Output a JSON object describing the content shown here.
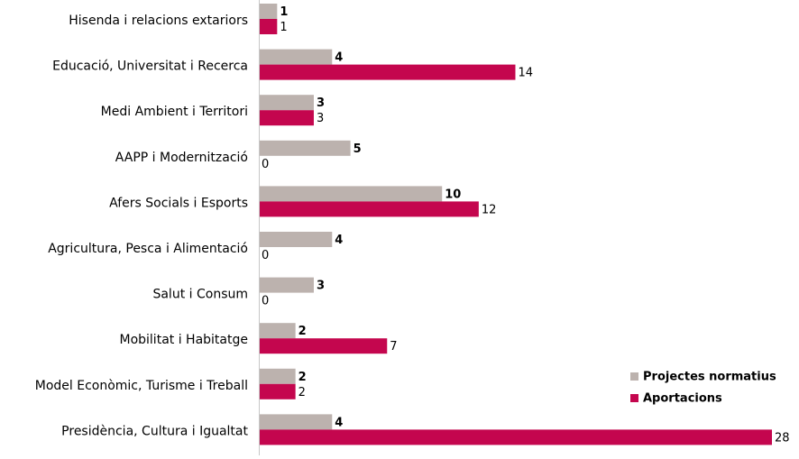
{
  "chart_data": {
    "type": "bar",
    "orientation": "horizontal",
    "categories": [
      "Hisenda i relacions extariors",
      "Educació, Universitat i Recerca",
      "Medi Ambient i Territori",
      "AAPP i Modernització",
      "Afers Socials i Esports",
      "Agricultura, Pesca i Alimentació",
      "Salut i Consum",
      "Mobilitat i Habitatge",
      "Model Econòmic, Turisme i Treball",
      "Presidència, Cultura i Igualtat"
    ],
    "series": [
      {
        "name": "Projectes normatius",
        "color": "#bcb2ae",
        "values": [
          1,
          4,
          3,
          5,
          10,
          4,
          3,
          2,
          2,
          4
        ]
      },
      {
        "name": "Aportacions",
        "color": "#c4064e",
        "values": [
          1,
          14,
          3,
          0,
          12,
          0,
          0,
          7,
          2,
          28
        ]
      }
    ],
    "xlim": [
      0,
      28
    ],
    "grid": false,
    "legend_position": "bottom-right"
  }
}
